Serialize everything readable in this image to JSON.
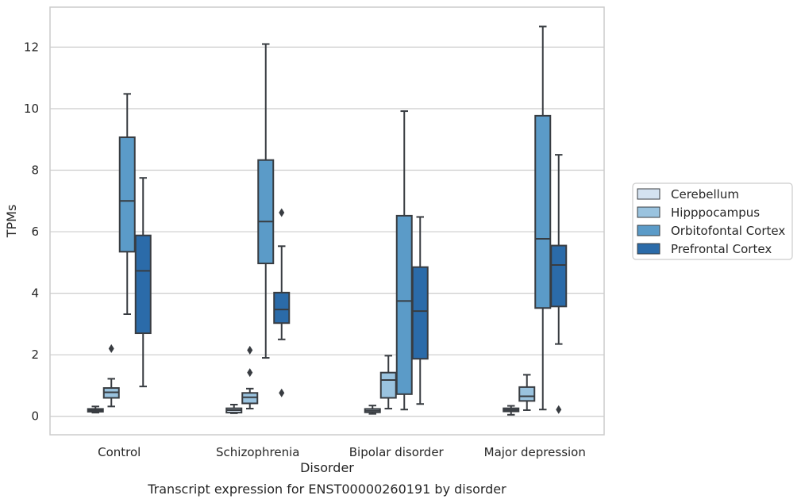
{
  "chart_data": {
    "type": "box",
    "caption": "Transcript expression for ENST00000260191 by disorder",
    "xlabel": "Disorder",
    "ylabel": "TPMs",
    "ylim": [
      -0.6,
      13.3
    ],
    "yticks": [
      0,
      2,
      4,
      6,
      8,
      10,
      12
    ],
    "ytick_labels": [
      "0",
      "2",
      "4",
      "6",
      "8",
      "10",
      "12"
    ],
    "grid": true,
    "legend_position": "right",
    "categories": [
      "Control",
      "Schizophrenia",
      "Bipolar disorder",
      "Major depression"
    ],
    "series": [
      {
        "name": "Cerebellum",
        "color": "#d4e2f0",
        "boxes": [
          {
            "whislo": 0.12,
            "q1": 0.15,
            "med": 0.2,
            "q3": 0.24,
            "whishi": 0.32,
            "fliers": []
          },
          {
            "whislo": 0.1,
            "q1": 0.12,
            "med": 0.2,
            "q3": 0.26,
            "whishi": 0.38,
            "fliers": []
          },
          {
            "whislo": 0.08,
            "q1": 0.13,
            "med": 0.18,
            "q3": 0.24,
            "whishi": 0.35,
            "fliers": []
          },
          {
            "whislo": 0.05,
            "q1": 0.16,
            "med": 0.21,
            "q3": 0.26,
            "whishi": 0.34,
            "fliers": []
          }
        ]
      },
      {
        "name": "Hipppocampus",
        "color": "#9ac3df",
        "boxes": [
          {
            "whislo": 0.32,
            "q1": 0.6,
            "med": 0.78,
            "q3": 0.92,
            "whishi": 1.22,
            "fliers": [
              2.2
            ]
          },
          {
            "whislo": 0.25,
            "q1": 0.42,
            "med": 0.62,
            "q3": 0.76,
            "whishi": 0.9,
            "fliers": [
              1.42,
              2.15
            ]
          },
          {
            "whislo": 0.25,
            "q1": 0.6,
            "med": 1.18,
            "q3": 1.42,
            "whishi": 1.97,
            "fliers": []
          },
          {
            "whislo": 0.2,
            "q1": 0.5,
            "med": 0.65,
            "q3": 0.95,
            "whishi": 1.35,
            "fliers": []
          }
        ]
      },
      {
        "name": "Orbitofontal Cortex",
        "color": "#5b9bc8",
        "boxes": [
          {
            "whislo": 3.32,
            "q1": 5.35,
            "med": 7.0,
            "q3": 9.07,
            "whishi": 10.48,
            "fliers": []
          },
          {
            "whislo": 1.9,
            "q1": 4.97,
            "med": 6.33,
            "q3": 8.33,
            "whishi": 12.1,
            "fliers": []
          },
          {
            "whislo": 0.22,
            "q1": 0.72,
            "med": 3.75,
            "q3": 6.52,
            "whishi": 9.92,
            "fliers": []
          },
          {
            "whislo": 0.22,
            "q1": 3.52,
            "med": 5.77,
            "q3": 9.77,
            "whishi": 12.67,
            "fliers": []
          }
        ]
      },
      {
        "name": "Prefrontal Cortex",
        "color": "#2b6ba9",
        "boxes": [
          {
            "whislo": 0.97,
            "q1": 2.7,
            "med": 4.73,
            "q3": 5.88,
            "whishi": 7.75,
            "fliers": []
          },
          {
            "whislo": 2.5,
            "q1": 3.03,
            "med": 3.47,
            "q3": 4.02,
            "whishi": 5.53,
            "fliers": [
              0.76,
              6.62
            ]
          },
          {
            "whislo": 0.4,
            "q1": 1.87,
            "med": 3.42,
            "q3": 4.85,
            "whishi": 6.48,
            "fliers": []
          },
          {
            "whislo": 2.35,
            "q1": 3.57,
            "med": 4.92,
            "q3": 5.55,
            "whishi": 8.5,
            "fliers": [
              0.22
            ]
          }
        ]
      }
    ]
  }
}
